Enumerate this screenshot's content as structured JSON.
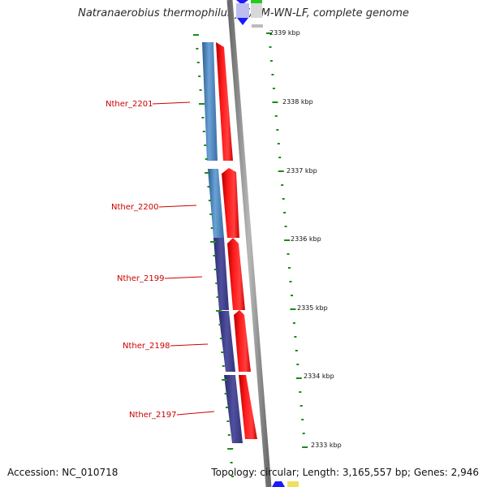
{
  "title": "Natranaerobius thermophilus JW/NM-WN-LF, complete genome",
  "footer": {
    "accession": "Accession: NC_010718",
    "summary": "Topology: circular; Length: 3,165,557 bp; Genes: 2,946"
  },
  "map": {
    "tick_labels": [
      "2339 kbp",
      "2338 kbp",
      "2337 kbp",
      "2336 kbp",
      "2335 kbp",
      "2334 kbp",
      "2333 kbp"
    ],
    "genes": [
      {
        "label": "Nther_2201"
      },
      {
        "label": "Nther_2200"
      },
      {
        "label": "Nther_2199"
      },
      {
        "label": "Nther_2198"
      },
      {
        "label": "Nther_2197"
      }
    ]
  },
  "colors": {
    "backbone": "#888888",
    "cds_forward": "#ff0000",
    "cds_blue": "#4a86c0",
    "cds_purple": "#40408f",
    "gc_tick": "#1a8a1a",
    "label_red": "#cc0000",
    "top_blue": "#1a1aff",
    "top_green": "#22cc22",
    "bottom_yellow": "#f0e060"
  }
}
